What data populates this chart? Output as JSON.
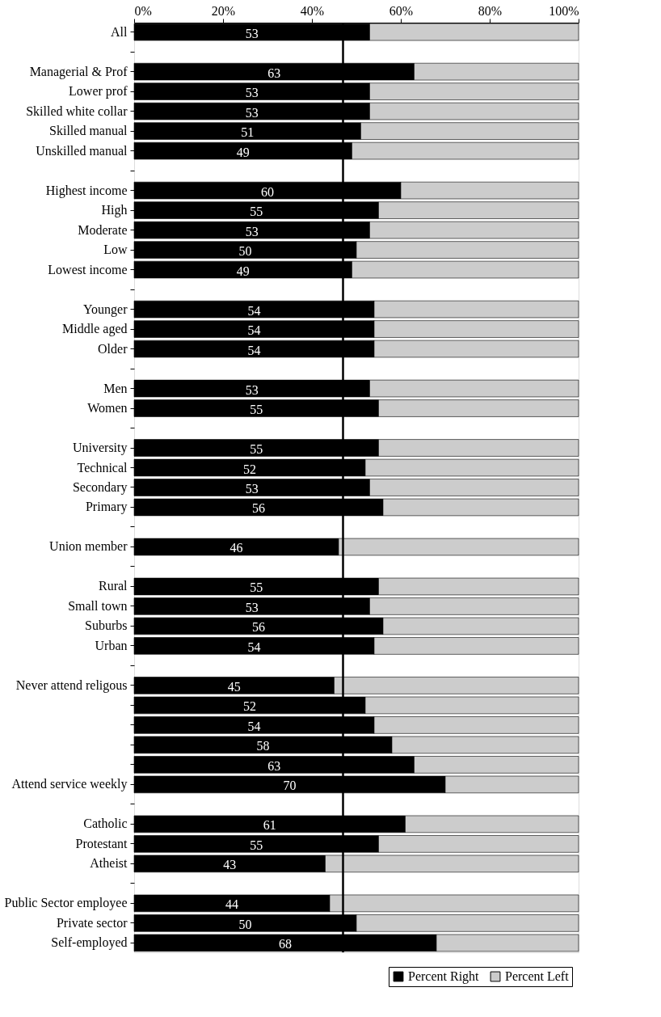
{
  "chart_data": {
    "type": "bar",
    "orientation": "horizontal",
    "stacked": true,
    "categories": [
      "All",
      null,
      "Managerial & Prof",
      "Lower prof",
      "Skilled white collar",
      "Skilled manual",
      "Unskilled manual",
      null,
      "Highest income",
      "High",
      "Moderate",
      "Low",
      "Lowest income",
      null,
      "Younger",
      "Middle aged",
      "Older",
      null,
      "Men",
      "Women",
      null,
      "University",
      "Technical",
      "Secondary",
      "Primary",
      null,
      "Union member",
      null,
      "Rural",
      "Small town",
      "Suburbs",
      "Urban",
      null,
      "Never attend religous",
      null,
      null,
      null,
      null,
      "Attend service weekly",
      null,
      "Catholic",
      "Protestant",
      "Atheist",
      null,
      "Public Sector employee",
      "Private sector",
      "Self-employed"
    ],
    "series": [
      {
        "name": "Percent Right",
        "color": "#000000",
        "values": [
          53,
          null,
          63,
          53,
          53,
          51,
          49,
          null,
          60,
          55,
          53,
          50,
          49,
          null,
          54,
          54,
          54,
          null,
          53,
          55,
          null,
          55,
          52,
          53,
          56,
          null,
          46,
          null,
          55,
          53,
          56,
          54,
          null,
          45,
          52,
          54,
          58,
          63,
          70,
          null,
          61,
          55,
          43,
          null,
          44,
          50,
          68
        ],
        "value_labels": [
          "53",
          null,
          "63",
          "53",
          "53",
          "51",
          "49",
          null,
          "60",
          "55",
          "53",
          "50",
          "49",
          null,
          "54",
          "54",
          "54",
          null,
          "53",
          "55",
          null,
          "55",
          "52",
          "53",
          "56",
          null,
          "46",
          null,
          "55",
          "53",
          "56",
          "54",
          null,
          "45",
          "52",
          "54",
          "58",
          "63",
          "70",
          null,
          "61",
          "55",
          "43",
          null,
          "44",
          "50",
          "68"
        ]
      },
      {
        "name": "Percent Left",
        "color": "#cccccc",
        "values": [
          47,
          null,
          37,
          47,
          47,
          49,
          51,
          null,
          40,
          45,
          47,
          50,
          51,
          null,
          46,
          46,
          46,
          null,
          47,
          45,
          null,
          45,
          48,
          47,
          44,
          null,
          54,
          null,
          45,
          47,
          44,
          46,
          null,
          55,
          48,
          46,
          42,
          37,
          30,
          null,
          39,
          45,
          57,
          null,
          56,
          50,
          32
        ]
      }
    ],
    "xlim": [
      0,
      100
    ],
    "xticks": [
      {
        "value": 0,
        "label": "0%"
      },
      {
        "value": 20,
        "label": "20%"
      },
      {
        "value": 40,
        "label": "40%"
      },
      {
        "value": 60,
        "label": "60%"
      },
      {
        "value": 80,
        "label": "80%"
      },
      {
        "value": 100,
        "label": "100%"
      }
    ],
    "ref_lines": [
      {
        "axis": "x",
        "value": 47,
        "color": "#000000"
      }
    ],
    "legend": "bottom right",
    "grid": false
  }
}
